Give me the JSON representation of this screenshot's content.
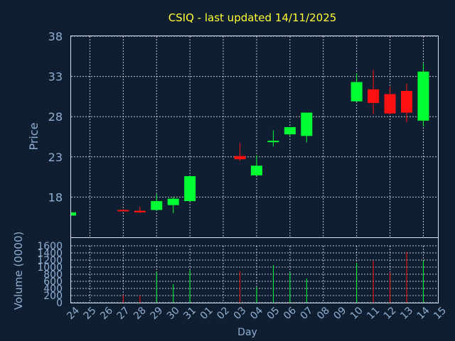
{
  "title": "CSIQ - last updated 14/11/2025",
  "colors": {
    "background": "#0f1e30",
    "up": "#00ff33",
    "down": "#ff1111",
    "grid": "#d9e2ec",
    "text": "#8fb0d4",
    "title": "#ffff33"
  },
  "chart_data": [
    {
      "type": "candlestick",
      "ylabel": "Price",
      "ylim": [
        13,
        38
      ],
      "yticks": [
        18,
        23,
        28,
        33,
        38
      ],
      "grid": true,
      "categories": [
        "24",
        "25",
        "26",
        "27",
        "28",
        "29",
        "30",
        "31",
        "01",
        "02",
        "03",
        "04",
        "05",
        "06",
        "07",
        "08",
        "09",
        "10",
        "11",
        "12",
        "13",
        "14",
        "15"
      ],
      "candles": [
        {
          "day": "24",
          "open": 15.7,
          "close": 16.1,
          "high": 16.1,
          "low": 15.7
        },
        {
          "day": "27",
          "open": 16.4,
          "close": 16.3,
          "high": 16.5,
          "low": 16.2
        },
        {
          "day": "28",
          "open": 16.3,
          "close": 16.1,
          "high": 16.8,
          "low": 16.0
        },
        {
          "day": "29",
          "open": 16.4,
          "close": 17.5,
          "high": 18.4,
          "low": 16.3
        },
        {
          "day": "30",
          "open": 17.0,
          "close": 17.8,
          "high": 18.0,
          "low": 16.0
        },
        {
          "day": "31",
          "open": 17.5,
          "close": 20.6,
          "high": 20.6,
          "low": 17.5
        },
        {
          "day": "03",
          "open": 23.1,
          "close": 22.7,
          "high": 24.7,
          "low": 22.5
        },
        {
          "day": "04",
          "open": 20.7,
          "close": 21.9,
          "high": 23.2,
          "low": 20.7
        },
        {
          "day": "05",
          "open": 24.9,
          "close": 25.0,
          "high": 26.3,
          "low": 24.3
        },
        {
          "day": "06",
          "open": 25.8,
          "close": 26.7,
          "high": 26.7,
          "low": 25.6
        },
        {
          "day": "07",
          "open": 25.6,
          "close": 28.5,
          "high": 28.5,
          "low": 24.8
        },
        {
          "day": "10",
          "open": 29.9,
          "close": 32.3,
          "high": 33.4,
          "low": 29.9
        },
        {
          "day": "11",
          "open": 31.4,
          "close": 29.7,
          "high": 33.8,
          "low": 28.3
        },
        {
          "day": "12",
          "open": 30.8,
          "close": 28.4,
          "high": 31.7,
          "low": 28.3
        },
        {
          "day": "13",
          "open": 31.2,
          "close": 28.5,
          "high": 32.1,
          "low": 27.3
        },
        {
          "day": "14",
          "open": 27.5,
          "close": 33.6,
          "high": 34.6,
          "low": 26.8
        }
      ]
    },
    {
      "type": "bar",
      "ylabel": "Volume (0000)",
      "xlabel": "Day",
      "ylim": [
        0,
        1600
      ],
      "yticks": [
        0,
        200,
        400,
        600,
        800,
        1000,
        1200,
        1400,
        1600
      ],
      "grid": true,
      "categories": [
        "24",
        "25",
        "26",
        "27",
        "28",
        "29",
        "30",
        "31",
        "01",
        "02",
        "03",
        "04",
        "05",
        "06",
        "07",
        "08",
        "09",
        "10",
        "11",
        "12",
        "13",
        "14",
        "15"
      ],
      "bars": [
        {
          "day": "27",
          "value": 220,
          "dir": "down"
        },
        {
          "day": "28",
          "value": 200,
          "dir": "down"
        },
        {
          "day": "29",
          "value": 860,
          "dir": "up"
        },
        {
          "day": "30",
          "value": 520,
          "dir": "up"
        },
        {
          "day": "31",
          "value": 920,
          "dir": "up"
        },
        {
          "day": "03",
          "value": 880,
          "dir": "down"
        },
        {
          "day": "04",
          "value": 440,
          "dir": "up"
        },
        {
          "day": "05",
          "value": 1060,
          "dir": "up"
        },
        {
          "day": "06",
          "value": 860,
          "dir": "up"
        },
        {
          "day": "07",
          "value": 680,
          "dir": "up"
        },
        {
          "day": "10",
          "value": 1120,
          "dir": "up"
        },
        {
          "day": "11",
          "value": 1180,
          "dir": "down"
        },
        {
          "day": "12",
          "value": 860,
          "dir": "down"
        },
        {
          "day": "13",
          "value": 1420,
          "dir": "down"
        },
        {
          "day": "14",
          "value": 1180,
          "dir": "up"
        }
      ]
    }
  ]
}
